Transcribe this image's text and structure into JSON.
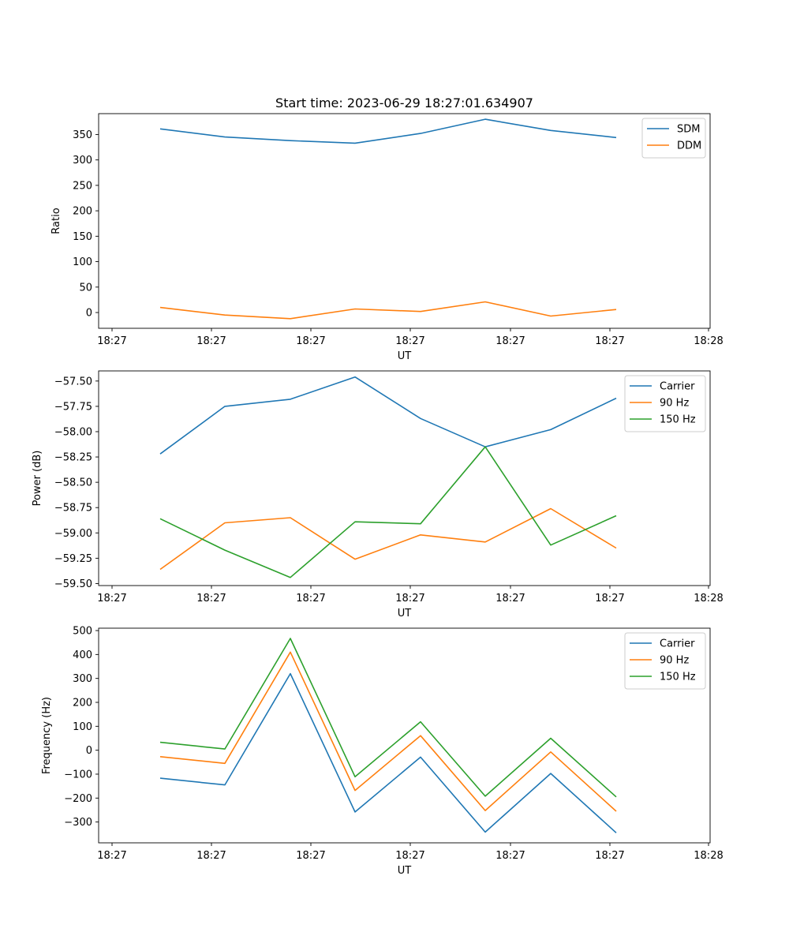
{
  "figure": {
    "title": "Start time: 2023-06-29 18:27:01.634907"
  },
  "chart_data": [
    {
      "type": "line",
      "xlabel": "UT",
      "ylabel": "Ratio",
      "x_tick_labels": [
        "18:27",
        "18:27",
        "18:27",
        "18:27",
        "18:27",
        "18:27",
        "18:28"
      ],
      "y_ticks": [
        0,
        50,
        100,
        150,
        200,
        250,
        300,
        350
      ],
      "ylim": [
        -31,
        391
      ],
      "legend_position": "upper right",
      "grid": false,
      "series": [
        {
          "name": "SDM",
          "color": "#1f77b4",
          "values": [
            361,
            345,
            338,
            333,
            352,
            380,
            358,
            344
          ]
        },
        {
          "name": "DDM",
          "color": "#ff7f0e",
          "values": [
            10,
            -5,
            -12,
            7,
            2,
            21,
            -7,
            6
          ]
        }
      ]
    },
    {
      "type": "line",
      "xlabel": "UT",
      "ylabel": "Power (dB)",
      "x_tick_labels": [
        "18:27",
        "18:27",
        "18:27",
        "18:27",
        "18:27",
        "18:27",
        "18:28"
      ],
      "y_ticks": [
        -59.5,
        -59.25,
        -59.0,
        -58.75,
        -58.5,
        -58.25,
        -58.0,
        -57.75,
        -57.5
      ],
      "y_tick_labels": [
        "−59.50",
        "−59.25",
        "−59.00",
        "−58.75",
        "−58.50",
        "−58.25",
        "−58.00",
        "−57.75",
        "−57.50"
      ],
      "ylim": [
        -59.52,
        -57.4
      ],
      "legend_position": "upper right",
      "grid": false,
      "series": [
        {
          "name": "Carrier",
          "color": "#1f77b4",
          "values": [
            -58.22,
            -57.75,
            -57.68,
            -57.46,
            -57.87,
            -58.15,
            -57.98,
            -57.67
          ]
        },
        {
          "name": "90 Hz",
          "color": "#ff7f0e",
          "values": [
            -59.36,
            -58.9,
            -58.85,
            -59.26,
            -59.02,
            -59.09,
            -58.76,
            -59.15
          ]
        },
        {
          "name": "150 Hz",
          "color": "#2ca02c",
          "values": [
            -58.86,
            -59.17,
            -59.44,
            -58.89,
            -58.91,
            -58.15,
            -59.12,
            -58.83
          ]
        }
      ]
    },
    {
      "type": "line",
      "xlabel": "UT",
      "ylabel": "Frequency (Hz)",
      "x_tick_labels": [
        "18:27",
        "18:27",
        "18:27",
        "18:27",
        "18:27",
        "18:27",
        "18:28"
      ],
      "y_ticks": [
        -300,
        -200,
        -100,
        0,
        100,
        200,
        300,
        400,
        500
      ],
      "y_tick_labels": [
        "−300",
        "−200",
        "−100",
        "0",
        "100",
        "200",
        "300",
        "400",
        "500"
      ],
      "ylim": [
        -387,
        510
      ],
      "legend_position": "upper right",
      "grid": false,
      "series": [
        {
          "name": "Carrier",
          "color": "#1f77b4",
          "values": [
            -117,
            -145,
            320,
            -258,
            -29,
            -342,
            -97,
            -345
          ]
        },
        {
          "name": "90 Hz",
          "color": "#ff7f0e",
          "values": [
            -27,
            -55,
            410,
            -168,
            61,
            -252,
            -7,
            -255
          ]
        },
        {
          "name": "150 Hz",
          "color": "#2ca02c",
          "values": [
            33,
            5,
            467,
            -111,
            119,
            -192,
            50,
            -195
          ]
        }
      ]
    }
  ]
}
